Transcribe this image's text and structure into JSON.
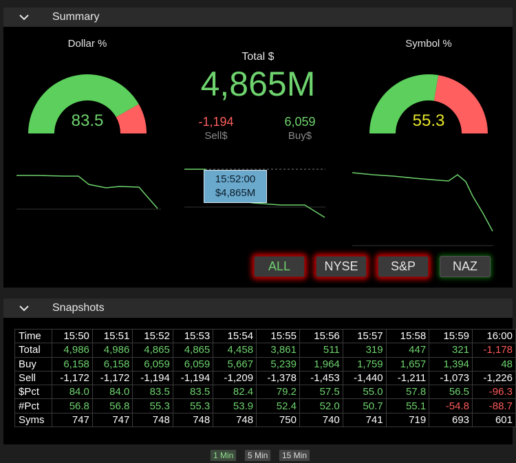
{
  "summary": {
    "header_title": "Summary",
    "dollar_pct": {
      "label": "Dollar %",
      "value": "83.5",
      "fraction": 0.835,
      "green": "#5ccf5c",
      "red": "#ff5f5f",
      "value_color": "#6ed36e"
    },
    "symbol_pct": {
      "label": "Symbol %",
      "value": "55.3",
      "fraction": 0.553,
      "green": "#5ccf5c",
      "red": "#ff5f5f",
      "value_color": "#e6e62a"
    },
    "total_label": "Total $",
    "total_value": "4,865M",
    "sell_value": "-1,194",
    "sell_label": "Sell$",
    "buy_value": "6,059",
    "buy_label": "Buy$",
    "tooltip": {
      "time": "15:52:00",
      "value": "$4,865M"
    },
    "exchanges": [
      "ALL",
      "NYSE",
      "S&P",
      "NAZ"
    ]
  },
  "snapshots": {
    "header_title": "Snapshots",
    "columns": [
      "Time",
      "15:50",
      "15:51",
      "15:52",
      "15:53",
      "15:54",
      "15:55",
      "15:56",
      "15:57",
      "15:58",
      "15:59",
      "16:00"
    ],
    "rows": [
      [
        "Total",
        "4,986",
        "4,986",
        "4,865",
        "4,865",
        "4,458",
        "3,861",
        "511",
        "319",
        "447",
        "321",
        "-1,178"
      ],
      [
        "Buy",
        "6,158",
        "6,158",
        "6,059",
        "6,059",
        "5,667",
        "5,239",
        "1,964",
        "1,759",
        "1,657",
        "1,394",
        "48"
      ],
      [
        "Sell",
        "-1,172",
        "-1,172",
        "-1,194",
        "-1,194",
        "-1,209",
        "-1,378",
        "-1,453",
        "-1,440",
        "-1,211",
        "-1,073",
        "-1,226"
      ],
      [
        "$Pct",
        "84.0",
        "84.0",
        "83.5",
        "83.5",
        "82.4",
        "79.2",
        "57.5",
        "55.0",
        "57.8",
        "56.5",
        "-96.3"
      ],
      [
        "#Pct",
        "56.8",
        "56.8",
        "55.3",
        "55.3",
        "53.9",
        "52.4",
        "52.0",
        "50.7",
        "55.1",
        "-54.8",
        "-88.7"
      ],
      [
        "Syms",
        "747",
        "747",
        "748",
        "748",
        "748",
        "750",
        "740",
        "741",
        "719",
        "693",
        "601"
      ]
    ]
  },
  "intervals": [
    "1 Min",
    "5 Min",
    "15 Min"
  ],
  "colors": {
    "green": "#6ed36e",
    "red": "#ff5a5a",
    "line": "#6ed36e"
  }
}
